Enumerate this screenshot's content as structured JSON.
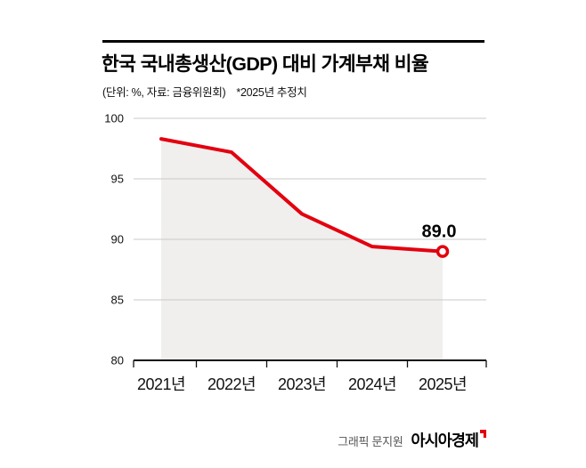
{
  "header": {
    "title": "한국 국내총생산(GDP) 대비 가계부채 비율",
    "unit_note": "(단위: %, 자료: 금융위원회)",
    "estimate_note": "*2025년 추정치"
  },
  "chart_data": {
    "type": "line",
    "title": "한국 국내총생산(GDP) 대비 가계부채 비율",
    "xlabel": "",
    "ylabel": "단위: %",
    "categories": [
      "2021년",
      "2022년",
      "2023년",
      "2024년",
      "2025년"
    ],
    "values": [
      98.3,
      97.2,
      92.1,
      89.4,
      89.0
    ],
    "ylim": [
      80,
      100
    ],
    "yticks": [
      100,
      95,
      90,
      85,
      80
    ],
    "grid": true,
    "legend": "none",
    "last_value_label": "89.0",
    "line_color": "#e3000f",
    "area_fill_color": "#f0efee",
    "grid_color": "#c8c8c8",
    "axis_color": "#111111"
  },
  "footer": {
    "credit": "그래픽 문지원",
    "brand": "아시아경제"
  }
}
